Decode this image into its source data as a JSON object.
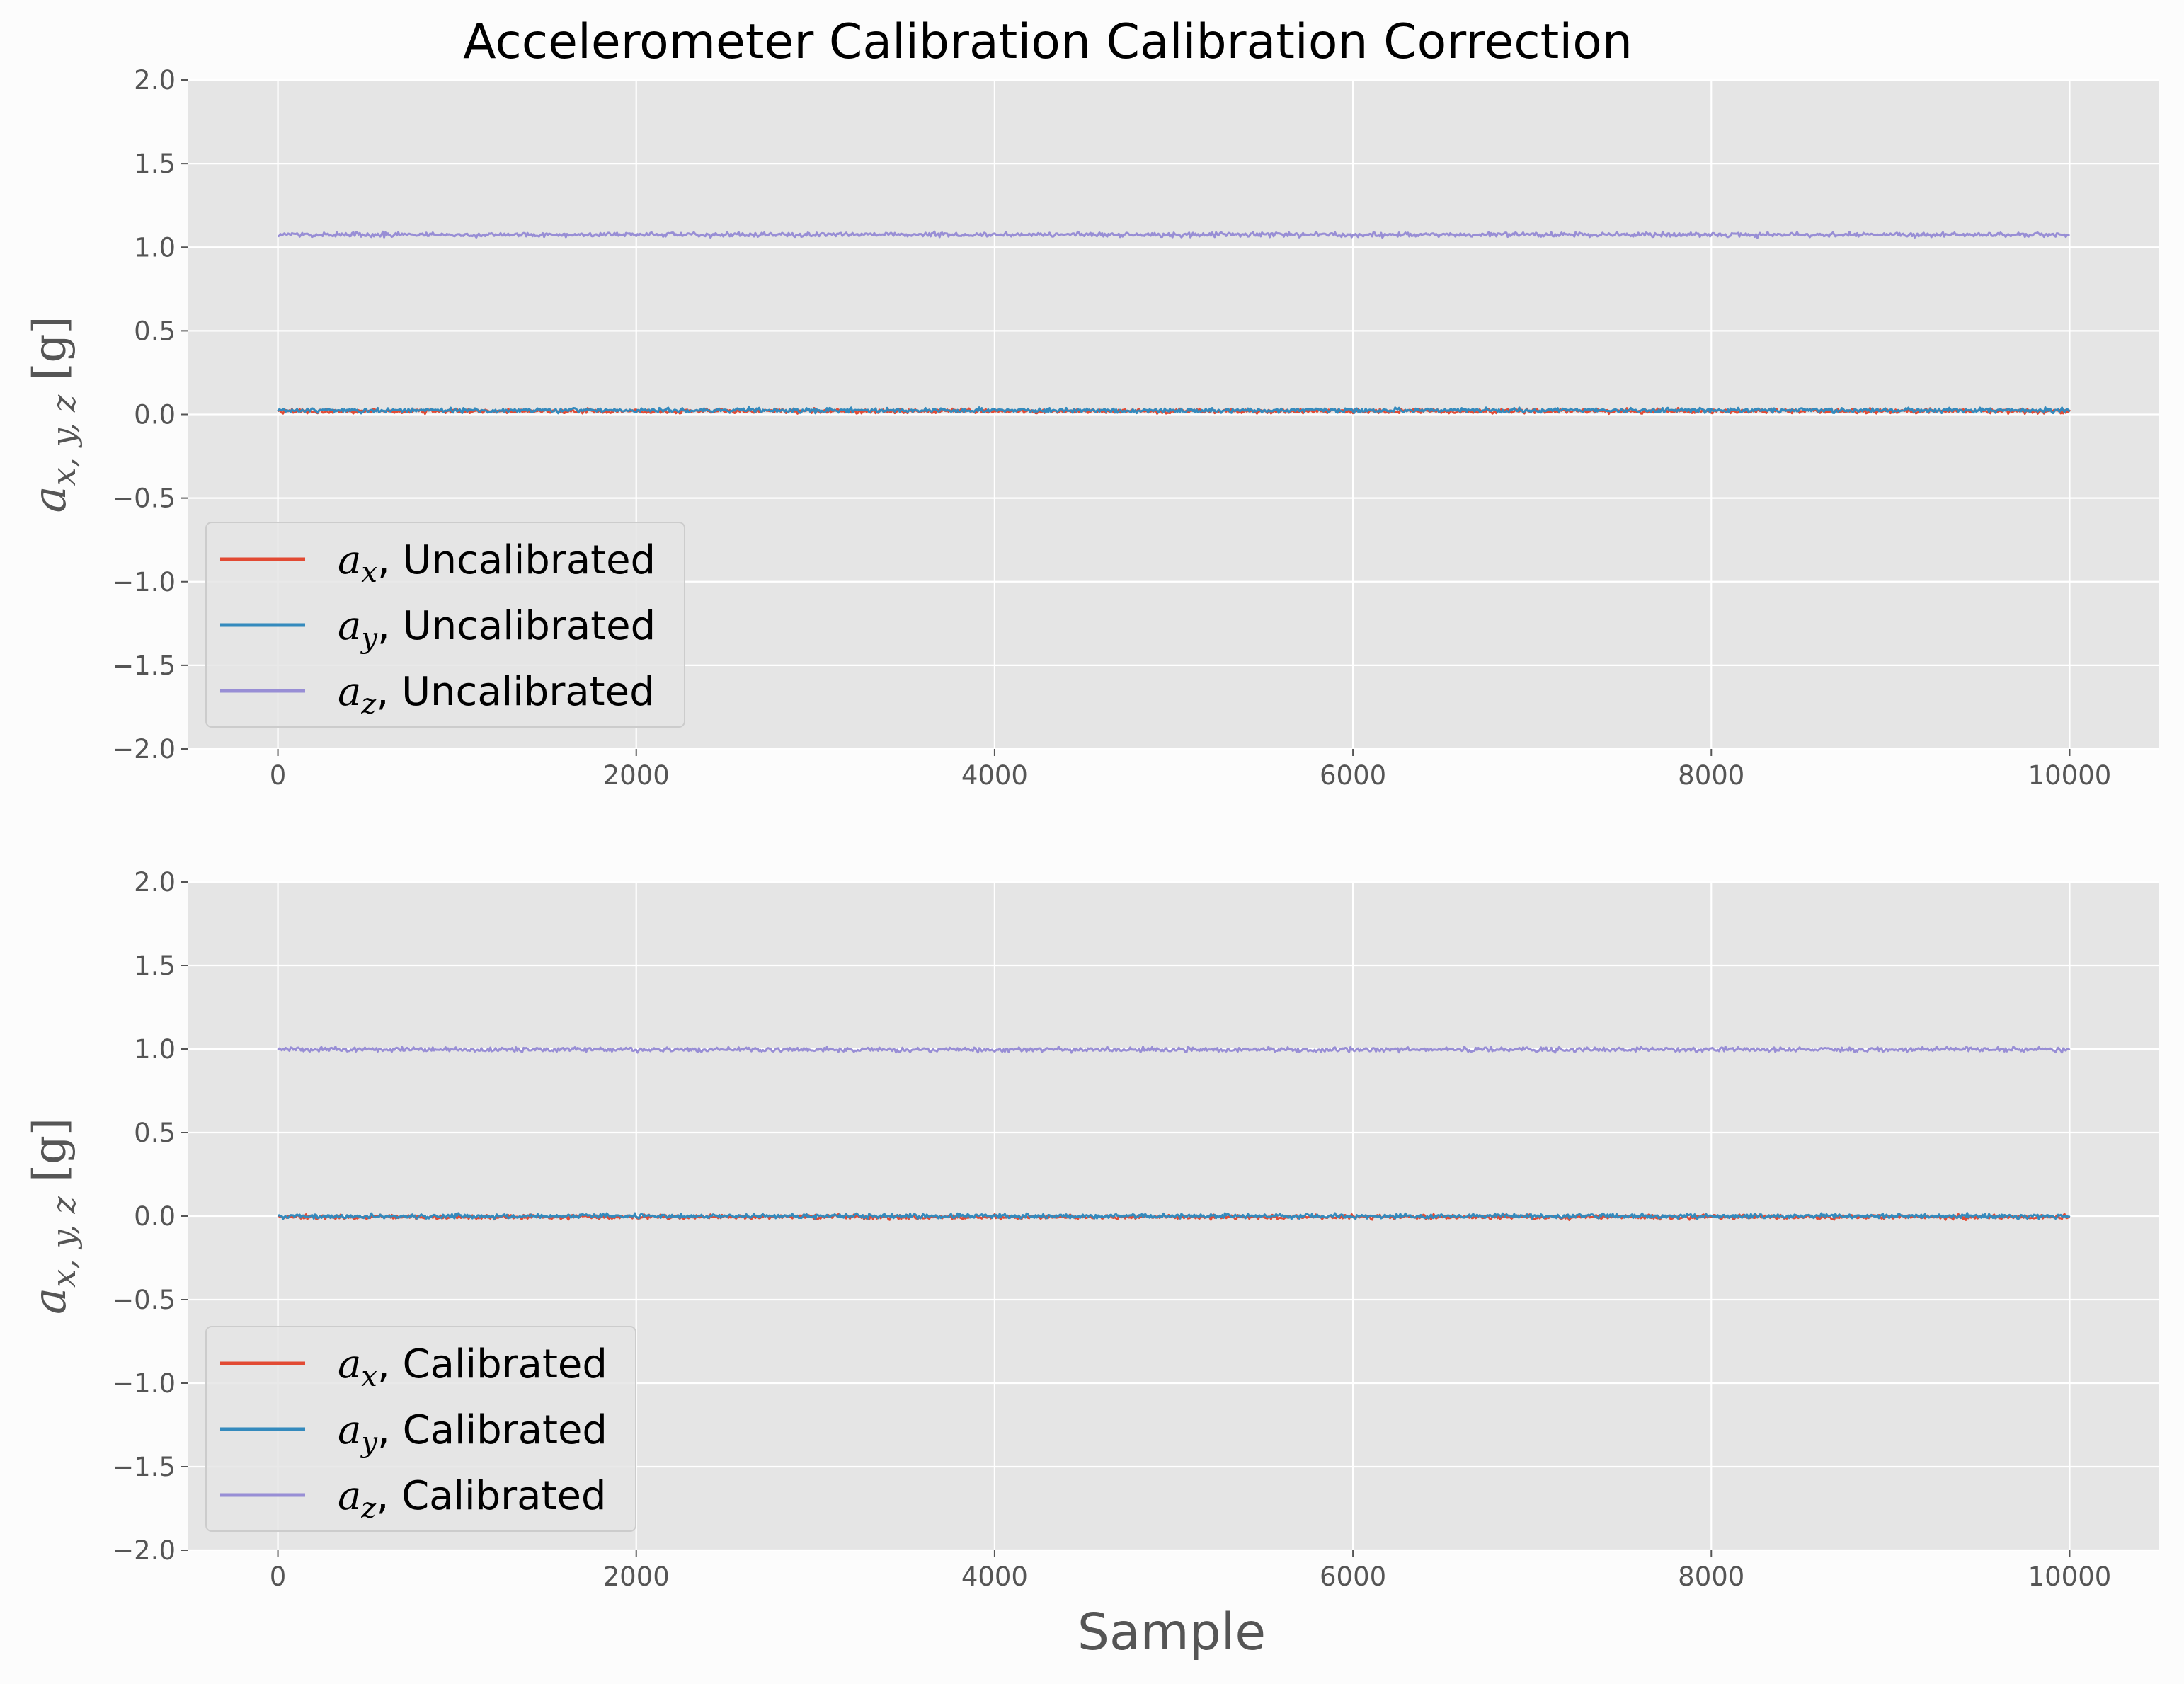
{
  "figure": {
    "title": "Accelerometer Calibration Calibration Correction",
    "xlabel": "Sample",
    "colors": {
      "background": "#fcfcfc",
      "axes": "#e5e5e5",
      "grid": "#ffffff",
      "ax": "#e24a33",
      "ay": "#348abd",
      "az": "#988ed5"
    }
  },
  "chart_data": [
    {
      "type": "line",
      "panel": "top",
      "ylabel": {
        "base": "a",
        "sub": "x, y, z",
        "unit": " [g]"
      },
      "xlim": [
        -500,
        10500
      ],
      "ylim": [
        -2.0,
        2.0
      ],
      "grid": true,
      "legend_position": "lower-left",
      "xticks": [
        0,
        2000,
        4000,
        6000,
        8000,
        10000
      ],
      "xtick_labels": [
        "0",
        "2000",
        "4000",
        "6000",
        "8000",
        "10000"
      ],
      "yticks": [
        -2.0,
        -1.5,
        -1.0,
        -0.5,
        0.0,
        0.5,
        1.0,
        1.5,
        2.0
      ],
      "ytick_labels": [
        "−2.0",
        "−1.5",
        "−1.0",
        "−0.5",
        "0.0",
        "0.5",
        "1.0",
        "1.5",
        "2.0"
      ],
      "x_range": [
        0,
        10000
      ],
      "series": [
        {
          "name": {
            "base": "a",
            "sub": "x",
            "rest": ", Uncalibrated"
          },
          "color": "#e24a33",
          "mean": 0.02,
          "noise": 0.012
        },
        {
          "name": {
            "base": "a",
            "sub": "y",
            "rest": ", Uncalibrated"
          },
          "color": "#348abd",
          "mean": 0.025,
          "noise": 0.012
        },
        {
          "name": {
            "base": "a",
            "sub": "z",
            "rest": ", Uncalibrated"
          },
          "color": "#988ed5",
          "mean": 1.075,
          "noise": 0.012
        }
      ]
    },
    {
      "type": "line",
      "panel": "bottom",
      "ylabel": {
        "base": "a",
        "sub": "x, y, z",
        "unit": " [g]"
      },
      "xlim": [
        -500,
        10500
      ],
      "ylim": [
        -2.0,
        2.0
      ],
      "grid": true,
      "legend_position": "lower-left",
      "xticks": [
        0,
        2000,
        4000,
        6000,
        8000,
        10000
      ],
      "xtick_labels": [
        "0",
        "2000",
        "4000",
        "6000",
        "8000",
        "10000"
      ],
      "yticks": [
        -2.0,
        -1.5,
        -1.0,
        -0.5,
        0.0,
        0.5,
        1.0,
        1.5,
        2.0
      ],
      "ytick_labels": [
        "−2.0",
        "−1.5",
        "−1.0",
        "−0.5",
        "0.0",
        "0.5",
        "1.0",
        "1.5",
        "2.0"
      ],
      "x_range": [
        0,
        10000
      ],
      "series": [
        {
          "name": {
            "base": "a",
            "sub": "x",
            "rest": ", Calibrated"
          },
          "color": "#e24a33",
          "mean": -0.005,
          "noise": 0.012
        },
        {
          "name": {
            "base": "a",
            "sub": "y",
            "rest": ", Calibrated"
          },
          "color": "#348abd",
          "mean": 0.0,
          "noise": 0.012
        },
        {
          "name": {
            "base": "a",
            "sub": "z",
            "rest": ", Calibrated"
          },
          "color": "#988ed5",
          "mean": 0.997,
          "noise": 0.012
        }
      ]
    }
  ]
}
